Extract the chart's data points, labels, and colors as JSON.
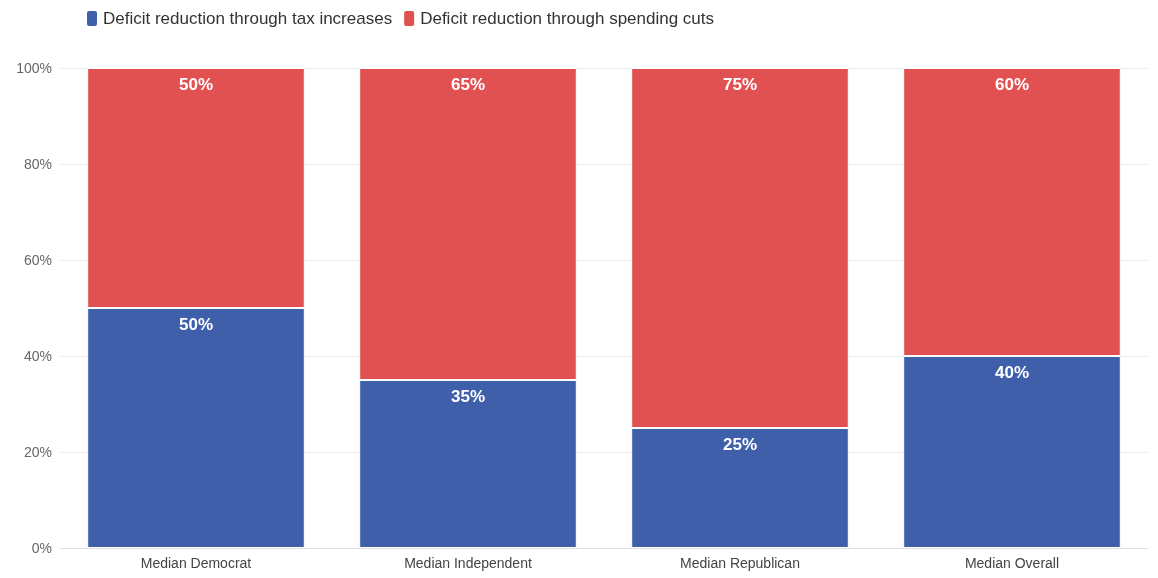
{
  "chart_data": {
    "type": "bar",
    "stacked": true,
    "categories": [
      "Median Democrat",
      "Median Independent",
      "Median Republican",
      "Median Overall"
    ],
    "series": [
      {
        "name": "Deficit reduction through tax increases",
        "color": "#3f5faa",
        "values": [
          50,
          35,
          25,
          40
        ],
        "value_labels": [
          "50%",
          "35%",
          "25%",
          "40%"
        ]
      },
      {
        "name": "Deficit reduction through spending cuts",
        "color": "#e15151",
        "values": [
          50,
          65,
          75,
          60
        ],
        "value_labels": [
          "50%",
          "65%",
          "75%",
          "60%"
        ]
      }
    ],
    "ylim": [
      0,
      100
    ],
    "yticks": [
      {
        "value": 0,
        "label": "0%"
      },
      {
        "value": 20,
        "label": "20%"
      },
      {
        "value": 40,
        "label": "40%"
      },
      {
        "value": 60,
        "label": "60%"
      },
      {
        "value": 80,
        "label": "80%"
      },
      {
        "value": 100,
        "label": "100%"
      }
    ],
    "grid": "y",
    "legend": "top left"
  }
}
